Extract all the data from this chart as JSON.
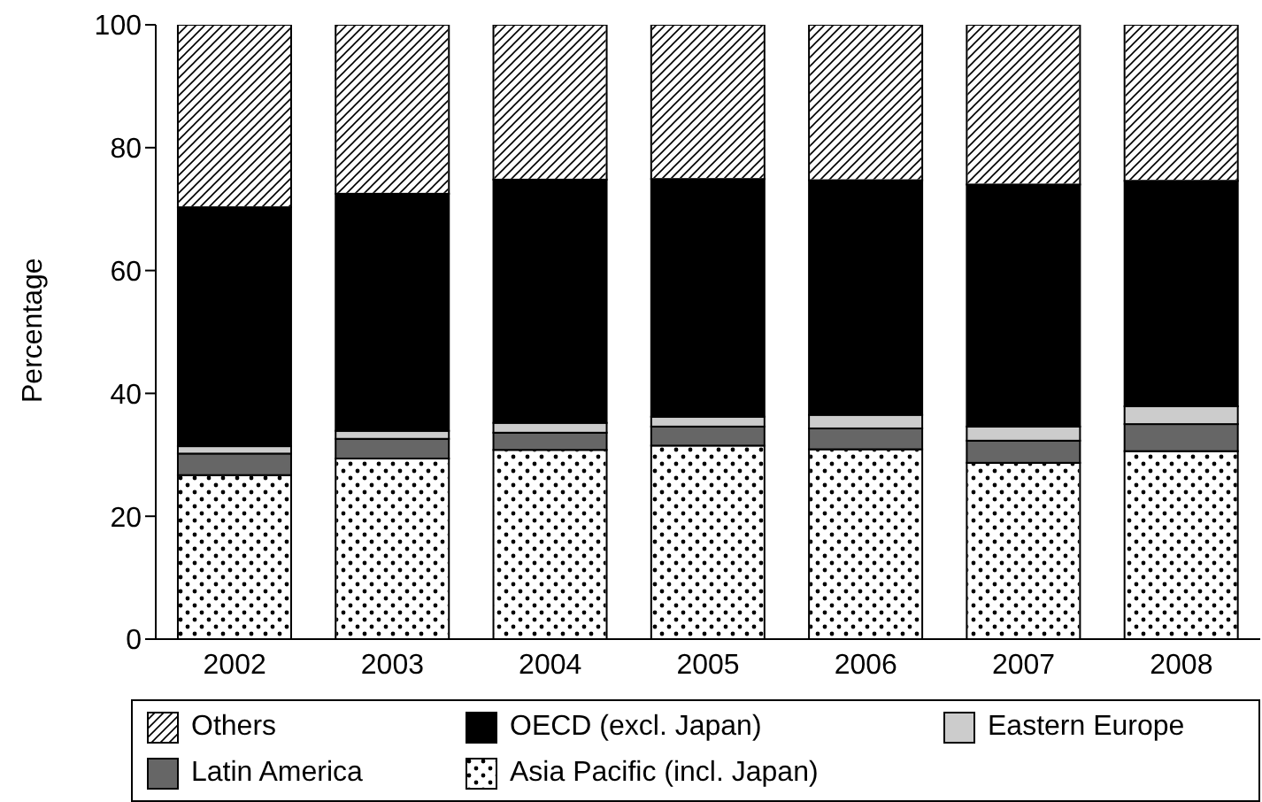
{
  "chart_data": {
    "type": "bar",
    "stacked": true,
    "ylabel": "Percentage",
    "categories": [
      "2002",
      "2003",
      "2004",
      "2005",
      "2006",
      "2007",
      "2008"
    ],
    "series": [
      {
        "name": "Asia Pacific (incl. Japan)",
        "color": "#ffffff",
        "values": [
          26.7,
          29.4,
          30.8,
          31.5,
          30.9,
          28.7,
          30.6
        ]
      },
      {
        "name": "Latin America",
        "color": "#666666",
        "values": [
          3.5,
          3.2,
          2.8,
          3.1,
          3.4,
          3.6,
          4.4
        ]
      },
      {
        "name": "Eastern Europe",
        "color": "#cccccc",
        "values": [
          1.2,
          1.3,
          1.6,
          1.6,
          2.2,
          2.3,
          2.9
        ]
      },
      {
        "name": "OECD (excl. Japan)",
        "color": "#000000",
        "values": [
          38.9,
          38.6,
          39.6,
          38.7,
          38.2,
          39.4,
          36.7
        ]
      },
      {
        "name": "Others",
        "color": "#ffffff",
        "values": [
          29.7,
          27.5,
          25.2,
          25.1,
          25.3,
          26.0,
          25.4
        ]
      }
    ],
    "ylim": [
      0,
      100
    ],
    "yticks": [
      0,
      20,
      40,
      60,
      80,
      100
    ],
    "grid": false,
    "legend": "bottom"
  }
}
